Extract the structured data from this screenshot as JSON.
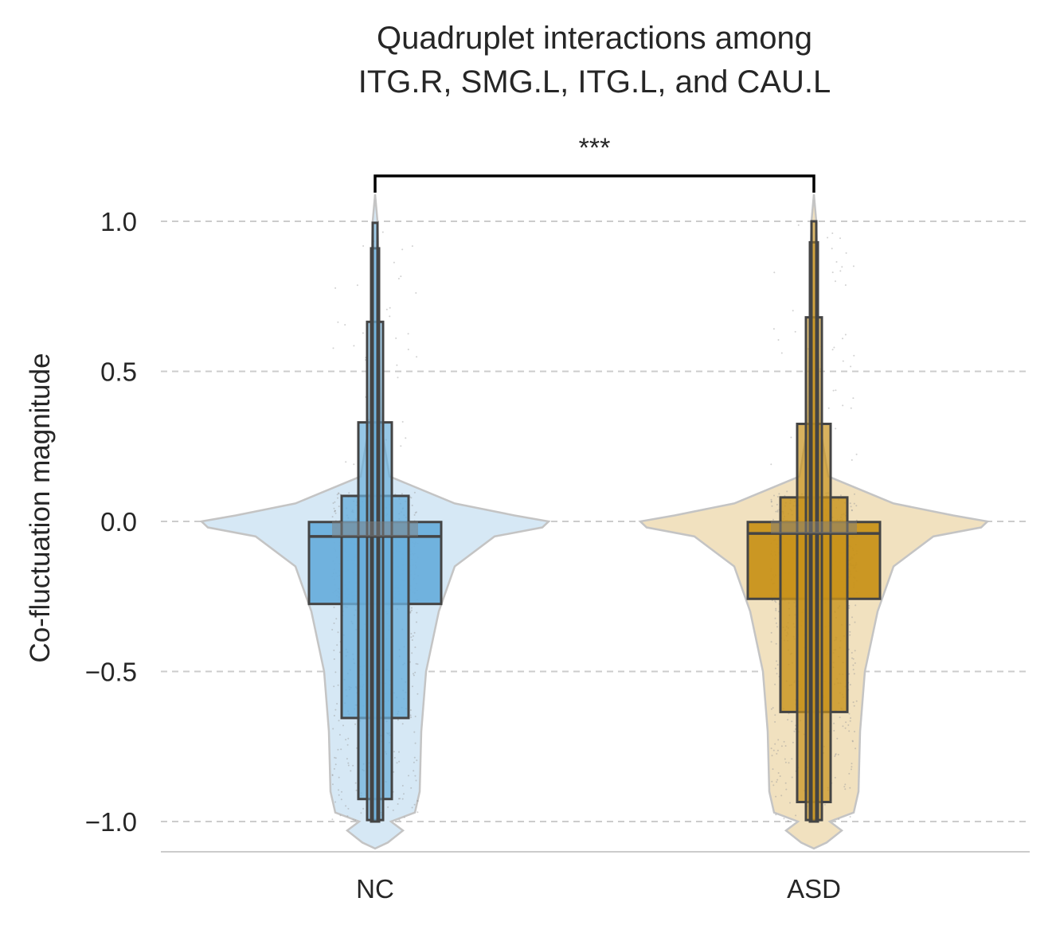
{
  "chart_data": {
    "type": "boxen",
    "title_lines": [
      "Quadruplet interactions among",
      "ITG.R, SMG.L, ITG.L, and CAU.L"
    ],
    "xlabel": "",
    "ylabel": "Co-fluctuation magnitude",
    "ylim": [
      -1.1,
      1.1
    ],
    "yticks": [
      1.0,
      0.5,
      0.0,
      -0.5,
      -1.0
    ],
    "ytick_labels": [
      "1.0",
      "0.5",
      "0.0",
      "−0.5",
      "−1.0"
    ],
    "grid": "y-dashed",
    "categories": [
      "NC",
      "ASD"
    ],
    "colors": {
      "NC": {
        "box": "#6aafdc",
        "violin": "#d6e8f5",
        "outline": "#444444"
      },
      "ASD": {
        "box": "#c8921a",
        "violin": "#f1e1bf",
        "outline": "#444444"
      },
      "grid": "#cccccc",
      "jitter": "#9a9a9a",
      "bracket": "#000000"
    },
    "groups": [
      {
        "name": "NC",
        "median": -0.05,
        "boxes": [
          {
            "lower": -0.275,
            "upper": -0.002
          },
          {
            "lower": -0.655,
            "upper": 0.085
          },
          {
            "lower": -0.925,
            "upper": 0.33
          },
          {
            "lower": -0.995,
            "upper": 0.665
          },
          {
            "lower": -1.0,
            "upper": 0.91
          },
          {
            "lower": -1.0,
            "upper": 0.995
          }
        ]
      },
      {
        "name": "ASD",
        "median": -0.04,
        "boxes": [
          {
            "lower": -0.258,
            "upper": -0.002
          },
          {
            "lower": -0.635,
            "upper": 0.08
          },
          {
            "lower": -0.935,
            "upper": 0.325
          },
          {
            "lower": -0.995,
            "upper": 0.68
          },
          {
            "lower": -1.0,
            "upper": 0.93
          },
          {
            "lower": -1.0,
            "upper": 1.0
          }
        ]
      }
    ],
    "significance": {
      "label": "***",
      "between": [
        "NC",
        "ASD"
      ]
    }
  }
}
